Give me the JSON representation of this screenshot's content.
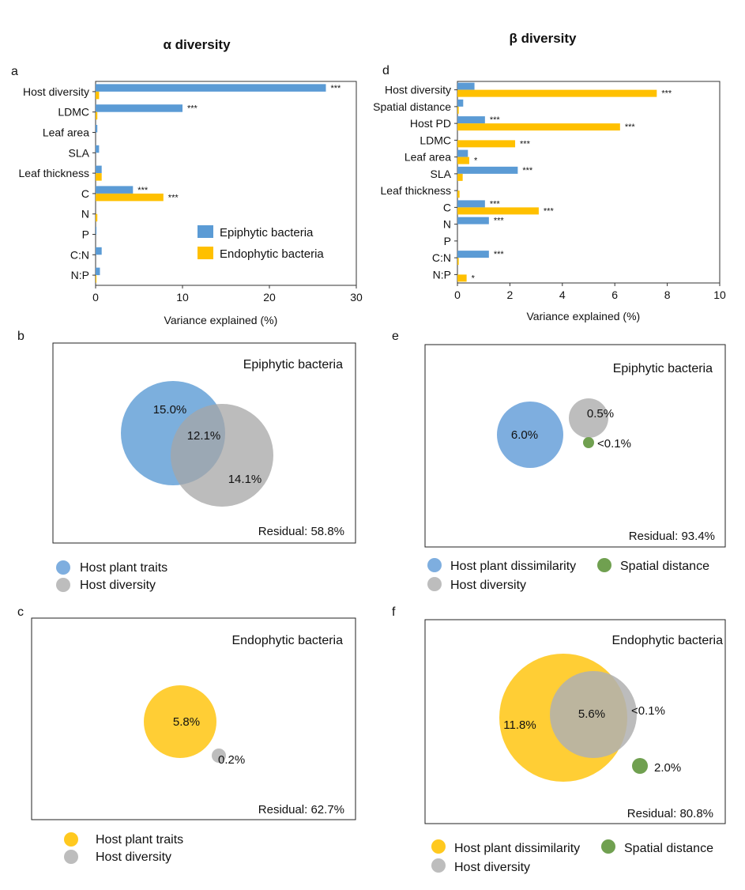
{
  "headers": {
    "alpha": "α diversity",
    "beta": "β diversity"
  },
  "colors": {
    "epi": "#5B9BD5",
    "endo": "#FFC000",
    "gray": "#B4B4B4",
    "green": "#70A050",
    "venn_yellow": "#FFC91F"
  },
  "chart_data": [
    {
      "id": "a",
      "type": "bar",
      "orientation": "horizontal",
      "panel_label": "a",
      "categories": [
        "Host diversity",
        "LDMC",
        "Leaf area",
        "SLA",
        "Leaf thickness",
        "C",
        "N",
        "P",
        "C:N",
        "N:P"
      ],
      "series": [
        {
          "name": "Epiphytic bacteria",
          "values": [
            26.5,
            10.0,
            0.2,
            0.4,
            0.7,
            4.3,
            0.0,
            0.1,
            0.7,
            0.5
          ],
          "sig": [
            "***",
            "***",
            "",
            "",
            "",
            "***",
            "",
            "",
            "",
            ""
          ]
        },
        {
          "name": "Endophytic bacteria",
          "values": [
            0.4,
            0.2,
            0.0,
            0.0,
            0.7,
            7.8,
            0.2,
            0.0,
            0.0,
            0.1
          ],
          "sig": [
            "",
            "",
            "",
            "",
            "",
            "***",
            "",
            "",
            "",
            ""
          ]
        }
      ],
      "xlabel": "Variance explained (%)",
      "xlim": [
        0,
        30
      ],
      "xticks": [
        "0",
        "10",
        "20",
        "30"
      ],
      "legend": "right"
    },
    {
      "id": "d",
      "type": "bar",
      "orientation": "horizontal",
      "panel_label": "d",
      "categories": [
        "Host diversity",
        "Spatial distance",
        "Host PD",
        "LDMC",
        "Leaf area",
        "SLA",
        "Leaf thickness",
        "C",
        "N",
        "P",
        "C:N",
        "N:P"
      ],
      "series": [
        {
          "name": "Epiphytic bacteria",
          "values": [
            0.65,
            0.22,
            1.05,
            0.0,
            0.4,
            2.3,
            0.0,
            1.05,
            1.2,
            0.0,
            1.2,
            0.0
          ],
          "sig": [
            "",
            "",
            "***",
            "",
            "",
            "***",
            "",
            "***",
            "***",
            "",
            "***",
            ""
          ]
        },
        {
          "name": "Endophytic bacteria",
          "values": [
            7.6,
            0.05,
            6.2,
            2.2,
            0.45,
            0.2,
            0.08,
            3.1,
            0.0,
            0.0,
            0.05,
            0.35
          ],
          "sig": [
            "***",
            "",
            "***",
            "***",
            "*",
            "",
            "",
            "***",
            "",
            "",
            "",
            "*"
          ]
        }
      ],
      "xlabel": "Variance explained (%)",
      "xlim": [
        0,
        10
      ],
      "xticks": [
        "0",
        "2",
        "4",
        "6",
        "8",
        "10"
      ]
    }
  ],
  "legend_a": {
    "epi": "Epiphytic bacteria",
    "endo": "Endophytic bacteria"
  },
  "venn": {
    "b": {
      "label": "b",
      "title": "Epiphytic bacteria",
      "v1": "15.0%",
      "v12": "12.1%",
      "v2": "14.1%",
      "residual": "Residual: 58.8%",
      "legend": [
        "Host plant traits",
        "Host diversity"
      ]
    },
    "c": {
      "label": "c",
      "title": "Endophytic bacteria",
      "v1": "5.8%",
      "v2": "0.2%",
      "residual": "Residual: 62.7%",
      "legend": [
        "Host plant traits",
        "Host diversity"
      ]
    },
    "e": {
      "label": "e",
      "title": "Epiphytic bacteria",
      "v1": "6.0%",
      "v2": "0.5%",
      "v3": "<0.1%",
      "residual": "Residual: 93.4%",
      "legend": [
        "Host plant dissimilarity",
        "Spatial distance",
        "Host diversity"
      ]
    },
    "f": {
      "label": "f",
      "title": "Endophytic bacteria",
      "v1": "11.8%",
      "v12": "5.6%",
      "v2": "<0.1%",
      "v3": "2.0%",
      "residual": "Residual: 80.8%",
      "legend": [
        "Host plant dissimilarity",
        "Spatial distance",
        "Host diversity"
      ]
    }
  }
}
